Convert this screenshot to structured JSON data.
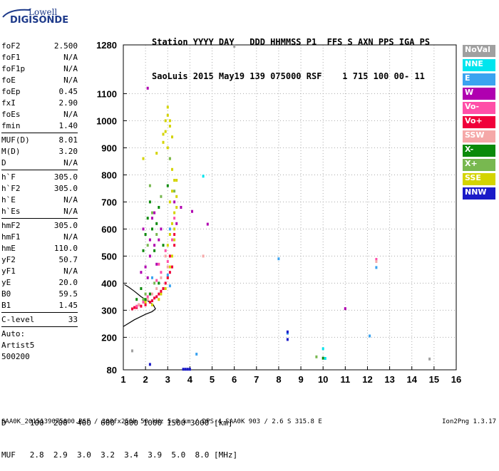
{
  "logo": {
    "line1": "Lowell",
    "line2": "DIGISONDE"
  },
  "header": {
    "line1": "Station YYYY DAY   DDD HHMMSS P1  FFS S AXN PPS IGA PS",
    "line2": "SaoLuis 2015 May19 139 075000 RSF    1 715 100 00- 11"
  },
  "params": [
    {
      "type": "row",
      "name": "foF2",
      "value": "2.500"
    },
    {
      "type": "row",
      "name": "foF1",
      "value": "N/A"
    },
    {
      "type": "row",
      "name": "foF1p",
      "value": "N/A"
    },
    {
      "type": "row",
      "name": "foE",
      "value": "N/A"
    },
    {
      "type": "row",
      "name": "foEp",
      "value": "0.45"
    },
    {
      "type": "row",
      "name": "fxI",
      "value": "2.90"
    },
    {
      "type": "row",
      "name": "foEs",
      "value": "N/A"
    },
    {
      "type": "row",
      "name": "fmin",
      "value": "1.40"
    },
    {
      "type": "sep"
    },
    {
      "type": "row",
      "name": "MUF(D)",
      "value": "8.01"
    },
    {
      "type": "row",
      "name": "M(D)",
      "value": "3.20"
    },
    {
      "type": "row",
      "name": "D",
      "value": "N/A"
    },
    {
      "type": "sep"
    },
    {
      "type": "row",
      "name": "h`F",
      "value": "305.0"
    },
    {
      "type": "row",
      "name": "h`F2",
      "value": "305.0"
    },
    {
      "type": "row",
      "name": "h`E",
      "value": "N/A"
    },
    {
      "type": "row",
      "name": "h`Es",
      "value": "N/A"
    },
    {
      "type": "sep"
    },
    {
      "type": "row",
      "name": "hmF2",
      "value": "305.0"
    },
    {
      "type": "row",
      "name": "hmF1",
      "value": "N/A"
    },
    {
      "type": "row",
      "name": "hmE",
      "value": "110.0"
    },
    {
      "type": "row",
      "name": "yF2",
      "value": "50.7"
    },
    {
      "type": "row",
      "name": "yF1",
      "value": "N/A"
    },
    {
      "type": "row",
      "name": "yE",
      "value": "20.0"
    },
    {
      "type": "row",
      "name": "B0",
      "value": "59.5"
    },
    {
      "type": "row",
      "name": "B1",
      "value": "1.45"
    },
    {
      "type": "sep"
    },
    {
      "type": "row",
      "name": "C-level",
      "value": "33"
    },
    {
      "type": "sep"
    },
    {
      "type": "text",
      "text": "Auto:"
    },
    {
      "type": "text",
      "text": "Artist5"
    },
    {
      "type": "text",
      "text": "500200"
    }
  ],
  "legend": [
    {
      "label": "NoVal",
      "color": "#a0a0a0"
    },
    {
      "label": "NNE",
      "color": "#00e5ee"
    },
    {
      "label": "E",
      "color": "#3ba3f0"
    },
    {
      "label": "W",
      "color": "#b000b0"
    },
    {
      "label": "Vo-",
      "color": "#ff4fa8"
    },
    {
      "label": "Vo+",
      "color": "#f0003a"
    },
    {
      "label": "SSW",
      "color": "#f5a8a8"
    },
    {
      "label": "X-",
      "color": "#0a8a0a"
    },
    {
      "label": "X+",
      "color": "#78b850"
    },
    {
      "label": "SSE",
      "color": "#d4d400"
    },
    {
      "label": "NNW",
      "color": "#1a1ac8"
    }
  ],
  "footer": {
    "line1": "D     100  200  400  600  800 1000 1500 3000 [km]",
    "line2": "MUF   2.8  2.9  3.0  3.2  3.4  3.9  5.0  8.0 [MHz]"
  },
  "bottom": {
    "left": "SAA0K_2015139075000.RSF / 300fx256h 50 kHz 5.0 km / DPS-4 SAA0K 903 / 2.6 S 315.8 E",
    "right": "Ion2Png 1.3.17"
  },
  "chart_data": {
    "type": "scatter",
    "xlim": [
      1,
      16
    ],
    "ylim": [
      80,
      1280
    ],
    "x_ticks": [
      1,
      2,
      3,
      4,
      5,
      6,
      7,
      8,
      9,
      10,
      11,
      12,
      13,
      14,
      15,
      16
    ],
    "y_ticks": [
      80,
      200,
      300,
      400,
      500,
      600,
      700,
      800,
      900,
      1000,
      1100,
      1280
    ],
    "grid": true,
    "series": [
      {
        "name": "SSE",
        "color": "#d4d400",
        "points": [
          [
            3.0,
            1020
          ],
          [
            3.1,
            980
          ],
          [
            3.2,
            940
          ],
          [
            3.0,
            900
          ],
          [
            3.1,
            860
          ],
          [
            3.2,
            820
          ],
          [
            3.3,
            780
          ],
          [
            3.2,
            740
          ],
          [
            3.1,
            700
          ],
          [
            3.3,
            660
          ],
          [
            3.2,
            620
          ],
          [
            3.1,
            580
          ],
          [
            3.0,
            540
          ],
          [
            3.2,
            500
          ],
          [
            3.1,
            460
          ],
          [
            3.0,
            420
          ],
          [
            2.9,
            380
          ],
          [
            2.6,
            340
          ],
          [
            2.3,
            320
          ],
          [
            2.9,
            1000
          ],
          [
            2.8,
            950
          ],
          [
            2.5,
            880
          ],
          [
            3.4,
            720
          ],
          [
            3.3,
            560
          ],
          [
            2.7,
            360
          ],
          [
            3.0,
            1050
          ],
          [
            2.9,
            960
          ],
          [
            2.0,
            330
          ],
          [
            3.4,
            780
          ],
          [
            3.1,
            1000
          ],
          [
            2.8,
            920
          ],
          [
            3.3,
            600
          ],
          [
            3.4,
            680
          ],
          [
            1.9,
            860
          ]
        ]
      },
      {
        "name": "Vo+",
        "color": "#f0003a",
        "points": [
          [
            3.1,
            500
          ],
          [
            3.2,
            460
          ],
          [
            3.0,
            420
          ],
          [
            2.9,
            400
          ],
          [
            2.8,
            380
          ],
          [
            2.6,
            360
          ],
          [
            2.4,
            345
          ],
          [
            2.2,
            330
          ],
          [
            2.0,
            320
          ],
          [
            1.8,
            315
          ],
          [
            1.6,
            310
          ],
          [
            1.4,
            305
          ],
          [
            3.3,
            540
          ],
          [
            3.3,
            580
          ],
          [
            2.5,
            350
          ],
          [
            2.3,
            335
          ],
          [
            1.7,
            320
          ],
          [
            1.5,
            310
          ],
          [
            3.1,
            440
          ],
          [
            2.7,
            370
          ]
        ]
      },
      {
        "name": "Vo-",
        "color": "#ff4fa8",
        "points": [
          [
            2.9,
            520
          ],
          [
            3.0,
            480
          ],
          [
            2.7,
            440
          ],
          [
            2.5,
            410
          ],
          [
            2.2,
            360
          ],
          [
            1.9,
            330
          ],
          [
            3.2,
            560
          ],
          [
            3.3,
            640
          ],
          [
            2.6,
            470
          ],
          [
            2.1,
            350
          ],
          [
            1.6,
            315
          ],
          [
            12.4,
            488
          ]
        ]
      },
      {
        "name": "W",
        "color": "#b000b0",
        "points": [
          [
            2.2,
            500
          ],
          [
            2.4,
            540
          ],
          [
            2.0,
            460
          ],
          [
            1.9,
            600
          ],
          [
            2.3,
            640
          ],
          [
            2.6,
            560
          ],
          [
            2.1,
            420
          ],
          [
            3.3,
            700
          ],
          [
            3.4,
            620
          ],
          [
            3.6,
            680
          ],
          [
            2.5,
            470
          ],
          [
            2.2,
            560
          ],
          [
            4.1,
            665
          ],
          [
            4.8,
            618
          ],
          [
            11.0,
            306
          ],
          [
            1.8,
            440
          ],
          [
            2.7,
            600
          ],
          [
            2.1,
            1120
          ],
          [
            2.4,
            660
          ]
        ]
      },
      {
        "name": "X-",
        "color": "#0a8a0a",
        "points": [
          [
            2.1,
            640
          ],
          [
            2.2,
            700
          ],
          [
            2.0,
            580
          ],
          [
            2.3,
            600
          ],
          [
            2.4,
            520
          ],
          [
            1.9,
            520
          ],
          [
            2.5,
            620
          ],
          [
            2.6,
            680
          ],
          [
            2.8,
            540
          ],
          [
            3.0,
            760
          ],
          [
            2.2,
            360
          ],
          [
            2.0,
            340
          ],
          [
            2.6,
            400
          ],
          [
            1.8,
            380
          ],
          [
            10.0,
            123
          ],
          [
            1.6,
            340
          ]
        ]
      },
      {
        "name": "X+",
        "color": "#78b850",
        "points": [
          [
            2.3,
            660
          ],
          [
            2.1,
            540
          ],
          [
            2.5,
            580
          ],
          [
            2.7,
            720
          ],
          [
            3.1,
            860
          ],
          [
            2.4,
            400
          ],
          [
            2.0,
            360
          ],
          [
            1.9,
            340
          ],
          [
            3.3,
            740
          ],
          [
            2.2,
            760
          ],
          [
            9.7,
            128
          ]
        ]
      },
      {
        "name": "SSW",
        "color": "#f5a8a8",
        "points": [
          [
            2.5,
            380
          ],
          [
            2.3,
            360
          ],
          [
            2.7,
            420
          ],
          [
            2.1,
            340
          ],
          [
            1.7,
            320
          ],
          [
            3.0,
            460
          ],
          [
            2.9,
            500
          ],
          [
            12.4,
            480
          ],
          [
            4.6,
            500
          ]
        ]
      },
      {
        "name": "NNE",
        "color": "#00e5ee",
        "points": [
          [
            4.6,
            795
          ],
          [
            10.0,
            158
          ],
          [
            10.1,
            122
          ]
        ]
      },
      {
        "name": "E",
        "color": "#3ba3f0",
        "points": [
          [
            3.0,
            430
          ],
          [
            3.1,
            390
          ],
          [
            8.4,
            215
          ],
          [
            8.0,
            490
          ],
          [
            12.4,
            458
          ],
          [
            12.1,
            205
          ],
          [
            4.3,
            138
          ],
          [
            2.3,
            420
          ],
          [
            3.1,
            600
          ]
        ]
      },
      {
        "name": "NNW",
        "color": "#1a1ac8",
        "points": [
          [
            3.7,
            82
          ],
          [
            3.8,
            82
          ],
          [
            3.9,
            82
          ],
          [
            4.0,
            82
          ],
          [
            8.4,
            192
          ],
          [
            8.4,
            220
          ],
          [
            2.2,
            100
          ]
        ]
      },
      {
        "name": "NoVal",
        "color": "#a0a0a0",
        "points": [
          [
            6.0,
            1275
          ],
          [
            1.4,
            150
          ],
          [
            14.8,
            120
          ]
        ]
      }
    ],
    "profile_curve": [
      [
        1.0,
        240
      ],
      [
        1.5,
        265
      ],
      [
        2.0,
        285
      ],
      [
        2.3,
        295
      ],
      [
        2.45,
        305
      ],
      [
        2.35,
        320
      ],
      [
        2.1,
        335
      ],
      [
        1.8,
        350
      ],
      [
        1.5,
        370
      ],
      [
        1.25,
        385
      ],
      [
        1.05,
        395
      ]
    ]
  }
}
